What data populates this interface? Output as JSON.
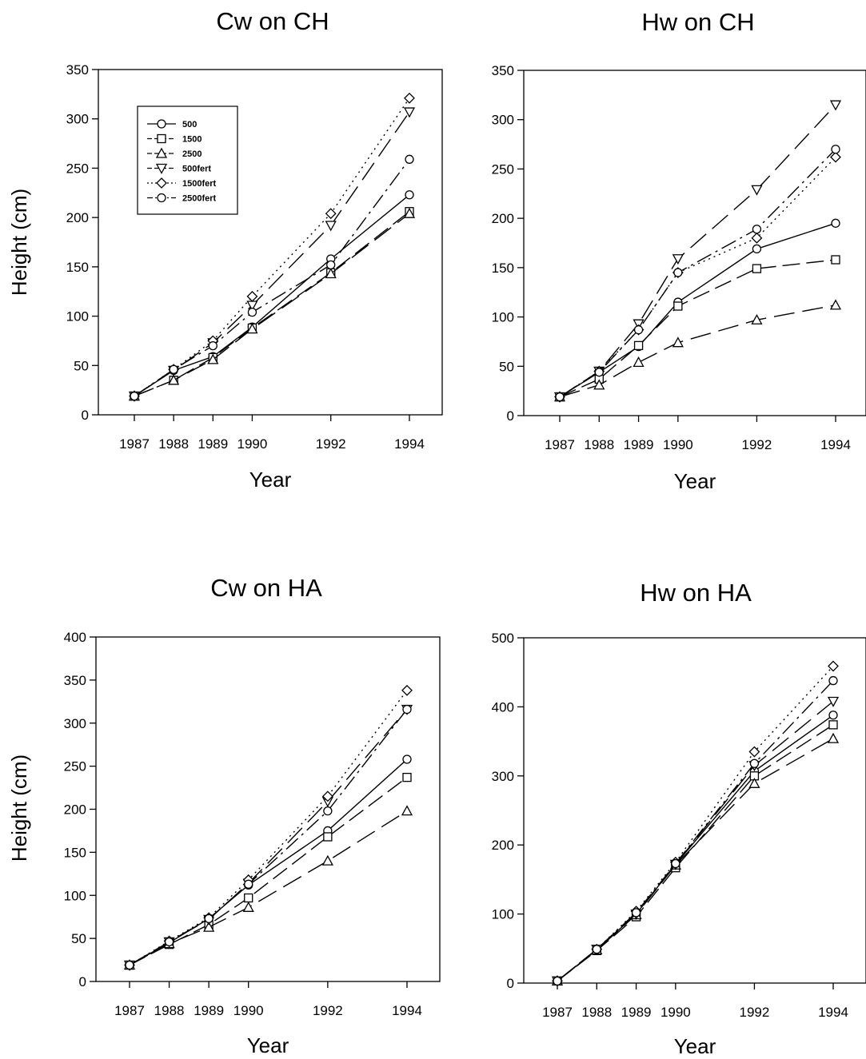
{
  "chart_data": [
    {
      "type": "line",
      "title": "Cw on CH",
      "xlabel": "Year",
      "ylabel": "Height  (cm)",
      "x": [
        1987,
        1988,
        1989,
        1990,
        1992,
        1994
      ],
      "x_tick_labels": [
        "1987",
        "1988",
        "1989",
        "1990",
        "1992",
        "1994"
      ],
      "xlim": [
        1987,
        1994
      ],
      "ylim": [
        0,
        350
      ],
      "y_ticks": [
        0,
        50,
        100,
        150,
        200,
        250,
        300,
        350
      ],
      "legend_position": "top-left",
      "series": [
        {
          "name": "500",
          "marker": "circle",
          "dash": "solid",
          "values": [
            19,
            45,
            59,
            89,
            158,
            223
          ]
        },
        {
          "name": "1500",
          "marker": "square",
          "dash": "dash",
          "values": [
            19,
            35,
            58,
            88,
            144,
            206
          ]
        },
        {
          "name": "2500",
          "marker": "triangle-up",
          "dash": "longdash",
          "values": [
            19,
            35,
            56,
            87,
            143,
            204
          ]
        },
        {
          "name": "500fert",
          "marker": "triangle-down",
          "dash": "longdash",
          "values": [
            19,
            45,
            73,
            111,
            192,
            307
          ]
        },
        {
          "name": "1500fert",
          "marker": "diamond",
          "dash": "dot",
          "values": [
            19,
            46,
            75,
            120,
            204,
            321
          ]
        },
        {
          "name": "2500fert",
          "marker": "circle",
          "dash": "dashdot",
          "values": [
            19,
            46,
            70,
            104,
            152,
            259
          ]
        }
      ]
    },
    {
      "type": "line",
      "title": "Hw on CH",
      "xlabel": "Year",
      "ylabel": "",
      "x": [
        1987,
        1988,
        1989,
        1990,
        1992,
        1994
      ],
      "x_tick_labels": [
        "1987",
        "1988",
        "1989",
        "1990",
        "1992",
        "1994"
      ],
      "xlim": [
        1987,
        1994
      ],
      "ylim": [
        0,
        350
      ],
      "y_ticks": [
        0,
        50,
        100,
        150,
        200,
        250,
        300,
        350
      ],
      "series": [
        {
          "name": "500",
          "marker": "circle",
          "dash": "solid",
          "values": [
            19,
            44,
            70,
            115,
            169,
            195
          ]
        },
        {
          "name": "1500",
          "marker": "square",
          "dash": "dash",
          "values": [
            19,
            37,
            71,
            111,
            149,
            158
          ]
        },
        {
          "name": "2500",
          "marker": "triangle-up",
          "dash": "longdash",
          "values": [
            19,
            31,
            54,
            74,
            97,
            112
          ]
        },
        {
          "name": "500fert",
          "marker": "triangle-down",
          "dash": "longdash",
          "values": [
            19,
            45,
            93,
            159,
            229,
            315
          ]
        },
        {
          "name": "1500fert",
          "marker": "diamond",
          "dash": "dot",
          "values": [
            19,
            45,
            87,
            145,
            180,
            262
          ]
        },
        {
          "name": "2500fert",
          "marker": "circle",
          "dash": "dashdot",
          "values": [
            19,
            44,
            87,
            145,
            189,
            270
          ]
        }
      ]
    },
    {
      "type": "line",
      "title": "Cw on HA",
      "xlabel": "Year",
      "ylabel": "Height  (cm)",
      "x": [
        1987,
        1988,
        1989,
        1990,
        1992,
        1994
      ],
      "x_tick_labels": [
        "1987",
        "1988",
        "1989",
        "1990",
        "1992",
        "1994"
      ],
      "xlim": [
        1987,
        1994
      ],
      "ylim": [
        0,
        400
      ],
      "y_ticks": [
        0,
        50,
        100,
        150,
        200,
        250,
        300,
        350,
        400
      ],
      "series": [
        {
          "name": "500",
          "marker": "circle",
          "dash": "solid",
          "values": [
            19,
            45,
            73,
            112,
            175,
            258
          ]
        },
        {
          "name": "1500",
          "marker": "square",
          "dash": "dash",
          "values": [
            19,
            43,
            66,
            97,
            168,
            237
          ]
        },
        {
          "name": "2500",
          "marker": "triangle-up",
          "dash": "longdash",
          "values": [
            19,
            44,
            63,
            86,
            140,
            198
          ]
        },
        {
          "name": "500fert",
          "marker": "triangle-down",
          "dash": "longdash",
          "values": [
            19,
            46,
            72,
            114,
            209,
            316
          ]
        },
        {
          "name": "1500fert",
          "marker": "diamond",
          "dash": "dot",
          "values": [
            19,
            47,
            74,
            118,
            215,
            338
          ]
        },
        {
          "name": "2500fert",
          "marker": "circle",
          "dash": "dashdot",
          "values": [
            19,
            46,
            73,
            113,
            198,
            316
          ]
        }
      ]
    },
    {
      "type": "line",
      "title": "Hw on HA",
      "xlabel": "Year",
      "ylabel": "",
      "x": [
        1987,
        1988,
        1989,
        1990,
        1992,
        1994
      ],
      "x_tick_labels": [
        "1987",
        "1988",
        "1989",
        "1990",
        "1992",
        "1994"
      ],
      "xlim": [
        1987,
        1994
      ],
      "ylim": [
        0,
        500
      ],
      "y_ticks": [
        0,
        100,
        200,
        300,
        400,
        500
      ],
      "series": [
        {
          "name": "500",
          "marker": "circle",
          "dash": "solid",
          "values": [
            3,
            48,
            100,
            172,
            307,
            388
          ]
        },
        {
          "name": "1500",
          "marker": "square",
          "dash": "dash",
          "values": [
            3,
            47,
            96,
            167,
            300,
            374
          ]
        },
        {
          "name": "2500",
          "marker": "triangle-up",
          "dash": "longdash",
          "values": [
            3,
            48,
            99,
            171,
            289,
            354
          ]
        },
        {
          "name": "500fert",
          "marker": "triangle-down",
          "dash": "longdash",
          "values": [
            3,
            49,
            100,
            172,
            315,
            408
          ]
        },
        {
          "name": "1500fert",
          "marker": "diamond",
          "dash": "dot",
          "values": [
            3,
            49,
            104,
            175,
            335,
            459
          ]
        },
        {
          "name": "2500fert",
          "marker": "circle",
          "dash": "dashdot",
          "values": [
            3,
            49,
            102,
            173,
            318,
            438
          ]
        }
      ]
    }
  ]
}
